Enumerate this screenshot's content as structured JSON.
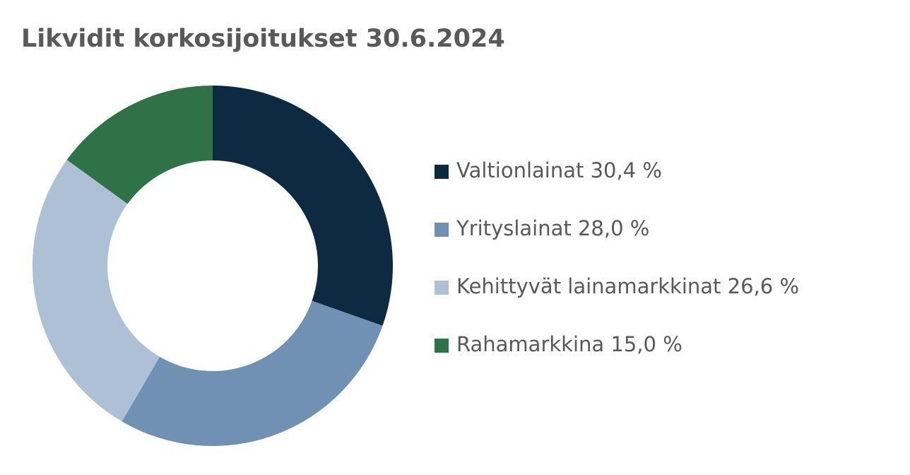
{
  "chart_data": {
    "type": "donut",
    "title": "Likvidit korkosijoitukset 30.6.2024",
    "categories": [
      "Valtionlainat",
      "Yrityslainat",
      "Kehittyvät lainamarkkinat",
      "Rahamarkkina"
    ],
    "values": [
      30.4,
      28.0,
      26.6,
      15.0
    ],
    "value_labels": [
      "30,4 %",
      "28,0 %",
      "26,6 %",
      "15,0 %"
    ],
    "colors": [
      "#0d2a42",
      "#7090b4",
      "#adc0d5",
      "#2f7248"
    ],
    "legend": "right"
  }
}
